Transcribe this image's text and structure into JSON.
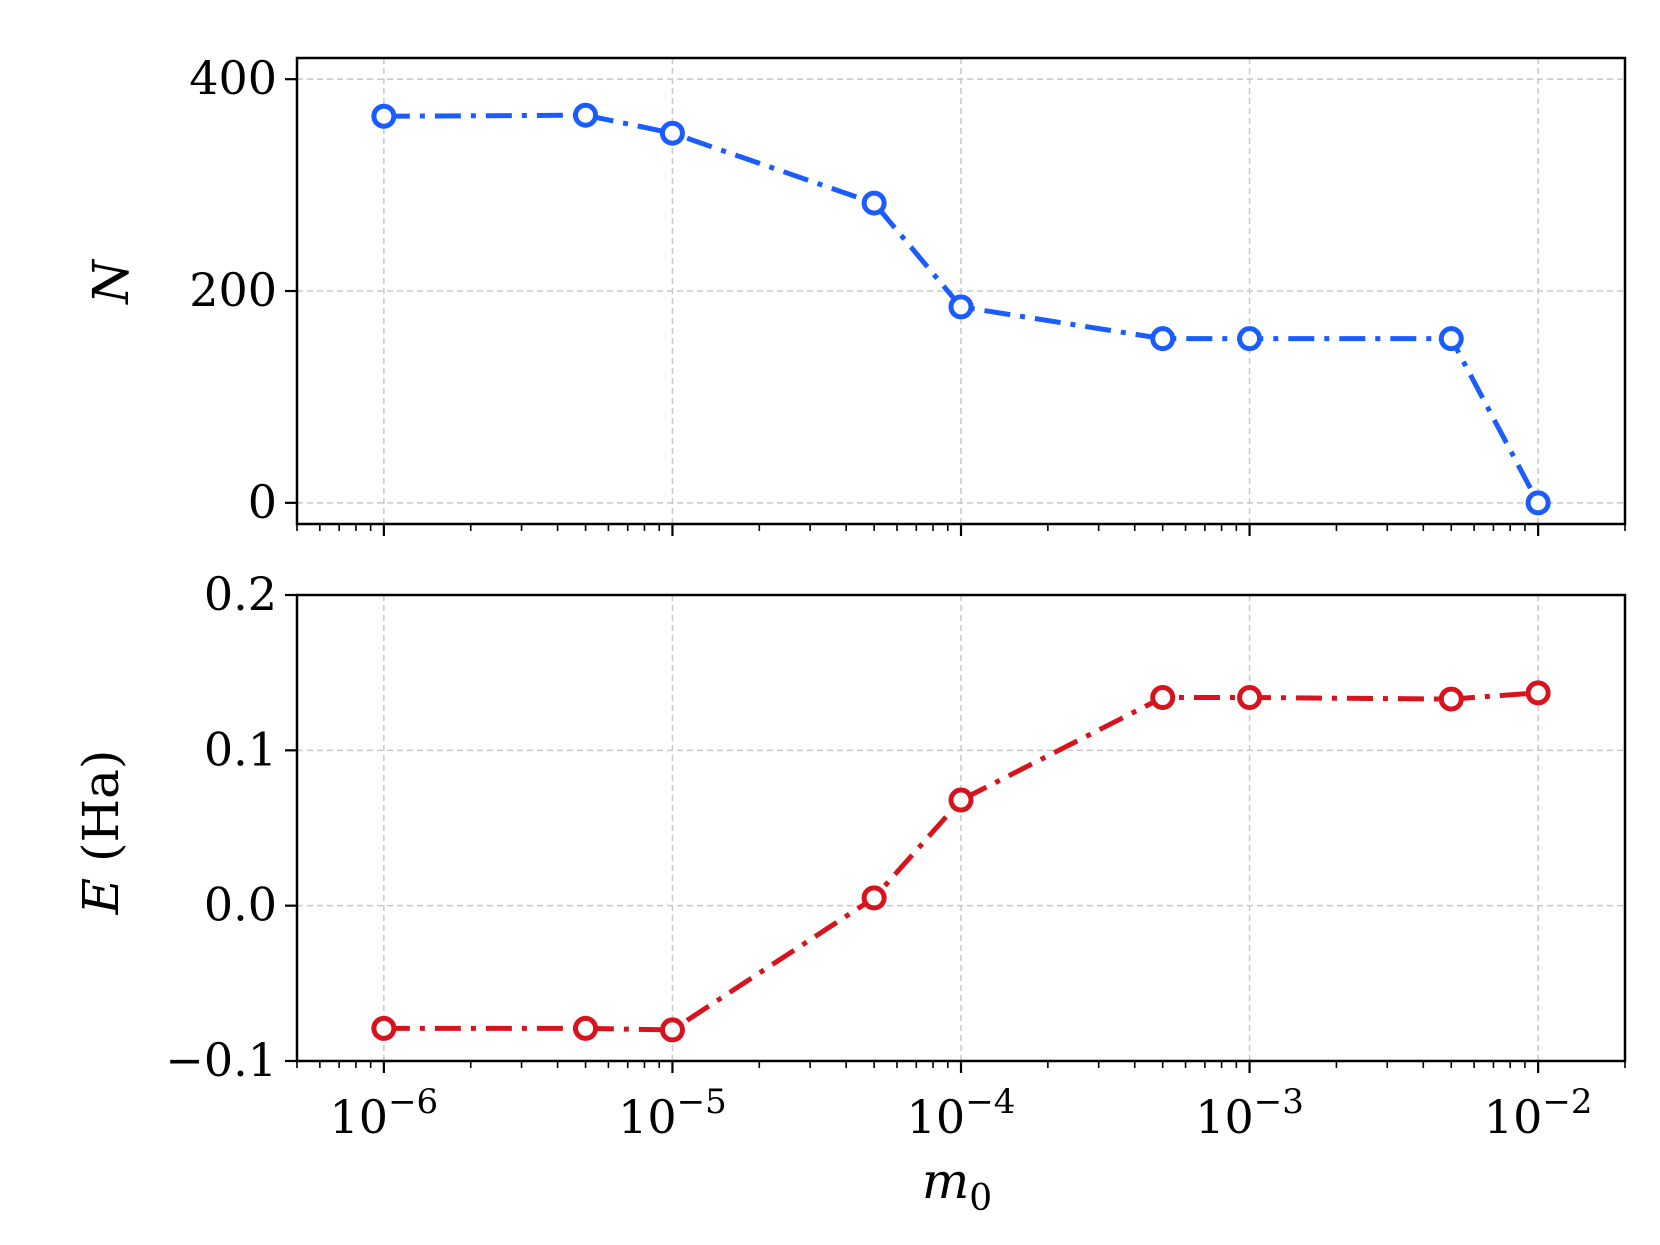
{
  "chart_data": [
    {
      "type": "line",
      "panel": "top",
      "ylabel": "N",
      "xscale": "log",
      "xlim": [
        5e-07,
        0.02
      ],
      "ylim": [
        -20,
        420
      ],
      "yticks": [
        0,
        200,
        400
      ],
      "ytick_labels": [
        "0",
        "200",
        "400"
      ],
      "grid": true,
      "x": [
        1e-06,
        5e-06,
        1e-05,
        5e-05,
        0.0001,
        0.0005,
        0.001,
        0.005,
        0.01
      ],
      "series": [
        {
          "values": [
            365,
            366,
            349,
            283,
            185,
            155,
            155,
            155,
            0
          ],
          "color": "#1a5cff",
          "linestyle": "dashdot",
          "marker": "open-circle"
        }
      ]
    },
    {
      "type": "line",
      "panel": "bottom",
      "ylabel": "E (Ha)",
      "xlabel": "m0",
      "xscale": "log",
      "xlim": [
        5e-07,
        0.02
      ],
      "ylim": [
        -0.1,
        0.2
      ],
      "yticks": [
        -0.1,
        0.0,
        0.1,
        0.2
      ],
      "ytick_labels": [
        "−0.1",
        "0.0",
        "0.1",
        "0.2"
      ],
      "xticks": [
        1e-06,
        1e-05,
        0.0001,
        0.001,
        0.01
      ],
      "xtick_exponents": [
        "−6",
        "−5",
        "−4",
        "−3",
        "−2"
      ],
      "xtick_base": "10",
      "grid": true,
      "x": [
        1e-06,
        5e-06,
        1e-05,
        5e-05,
        0.0001,
        0.0005,
        0.001,
        0.005,
        0.01
      ],
      "series": [
        {
          "values": [
            -0.079,
            -0.079,
            -0.08,
            0.005,
            0.068,
            0.134,
            0.134,
            0.133,
            0.137
          ],
          "color": "#d7141e",
          "linestyle": "dashdot",
          "marker": "open-circle"
        }
      ]
    }
  ]
}
